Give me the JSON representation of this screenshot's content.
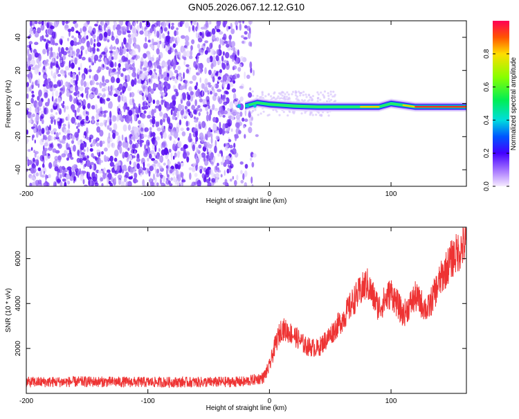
{
  "figure_title": "GN05.2026.067.12.12.G10",
  "chart_data": [
    {
      "type": "heatmap",
      "title": "GN05.2026.067.12.12.G10",
      "xlabel": "Height of straight line (km)",
      "ylabel": "Frequency (Hz)",
      "xlim": [
        -200,
        162
      ],
      "ylim": [
        -50,
        50
      ],
      "xticks": [
        -200,
        -100,
        0,
        100
      ],
      "yticks": [
        -40,
        -20,
        0,
        20,
        40
      ],
      "colorbar": {
        "label": "Normalized spectral amplitude",
        "range": [
          0,
          1
        ],
        "ticks": [
          "0.0",
          "0.2",
          "0.4",
          "0.6",
          "0.8"
        ]
      },
      "noise_region_x": [
        -200,
        -15
      ],
      "signal_track": [
        {
          "x": -20,
          "y": -1.5,
          "amp": 0.3
        },
        {
          "x": -10,
          "y": 0.5,
          "amp": 0.9
        },
        {
          "x": 0,
          "y": -0.5,
          "amp": 0.5
        },
        {
          "x": 20,
          "y": -1.5,
          "amp": 0.45
        },
        {
          "x": 40,
          "y": -2,
          "amp": 0.45
        },
        {
          "x": 60,
          "y": -2,
          "amp": 0.5
        },
        {
          "x": 75,
          "y": -2,
          "amp": 0.8
        },
        {
          "x": 90,
          "y": -2,
          "amp": 0.85
        },
        {
          "x": 100,
          "y": 0,
          "amp": 0.45
        },
        {
          "x": 110,
          "y": -1,
          "amp": 0.7
        },
        {
          "x": 120,
          "y": -2,
          "amp": 0.85
        },
        {
          "x": 140,
          "y": -2,
          "amp": 0.85
        },
        {
          "x": 162,
          "y": -2,
          "amp": 0.85
        }
      ]
    },
    {
      "type": "line",
      "xlabel": "Height of straight line (km)",
      "ylabel": "SNR (10 * v/v)",
      "xlim": [
        -200,
        162
      ],
      "ylim": [
        0,
        7400
      ],
      "xticks": [
        -200,
        -100,
        0,
        100
      ],
      "yticks": [
        2000,
        4000,
        6000
      ],
      "color": "#ee3333",
      "series": [
        {
          "x": [
            -200,
            -150,
            -100,
            -50,
            -20,
            -5,
            0,
            5,
            10,
            20,
            30,
            40,
            50,
            60,
            70,
            80,
            90,
            100,
            110,
            120,
            130,
            140,
            150,
            162
          ],
          "y": [
            500,
            520,
            500,
            500,
            520,
            700,
            1200,
            2200,
            2900,
            2600,
            2100,
            2000,
            2600,
            3300,
            4200,
            4900,
            3800,
            4500,
            3500,
            4300,
            3700,
            5000,
            6000,
            6700
          ]
        }
      ]
    }
  ]
}
